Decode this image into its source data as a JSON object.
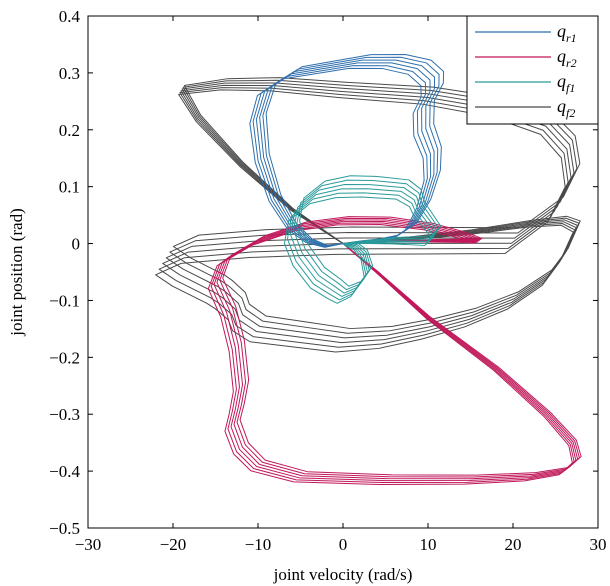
{
  "chart_data": {
    "type": "line",
    "title": "",
    "xlabel": "joint velocity (rad/s)",
    "ylabel": "joint position (rad)",
    "xlim": [
      -30,
      30
    ],
    "ylim": [
      -0.5,
      0.4
    ],
    "xticks": [
      -30,
      -20,
      -10,
      0,
      10,
      20,
      30
    ],
    "yticks": [
      -0.5,
      -0.4,
      -0.3,
      -0.2,
      -0.1,
      0,
      0.1,
      0.2,
      0.3,
      0.4
    ],
    "xtick_labels": [
      "−30",
      "−20",
      "−10",
      "0",
      "10",
      "20",
      "30"
    ],
    "ytick_labels": [
      "−0.5",
      "−0.4",
      "−0.3",
      "−0.2",
      "−0.1",
      "0",
      "0.1",
      "0.2",
      "0.3",
      "0.4"
    ],
    "grid": false,
    "legend_position": "top-right",
    "loops": 6,
    "series": [
      {
        "name": "q_r1",
        "legend_main": "q",
        "legend_sub": "r1",
        "color": "#2e6fad",
        "jitter": [
          0.45,
          0.005
        ],
        "x": [
          0,
          2,
          4,
          6,
          8,
          9.5,
          10.5,
          10.5,
          9.5,
          9.5,
          10.5,
          10.5,
          9.0,
          6.0,
          2.0,
          -2.0,
          -6.0,
          -9.0,
          -10.0,
          -9.5,
          -8.0,
          -6.0,
          -4.0,
          -2.0,
          0
        ],
        "y": [
          0,
          0.003,
          0.005,
          0.01,
          0.03,
          0.07,
          0.12,
          0.16,
          0.2,
          0.24,
          0.27,
          0.29,
          0.31,
          0.32,
          0.32,
          0.31,
          0.3,
          0.27,
          0.22,
          0.15,
          0.08,
          0.03,
          0.005,
          -0.005,
          0
        ]
      },
      {
        "name": "q_r2",
        "legend_main": "q",
        "legend_sub": "r2",
        "color": "#c0185a",
        "jitter": [
          0.3,
          0.004
        ],
        "x": [
          0,
          5,
          10,
          14,
          16,
          14,
          10,
          5,
          0,
          -5,
          -10,
          -14,
          -15,
          -13.5,
          -12.5,
          -12,
          -12.5,
          -13,
          -12,
          -10,
          -5,
          5,
          15,
          22,
          26,
          27.5,
          27,
          24,
          18,
          10,
          4,
          0
        ],
        "y": [
          0,
          0.005,
          0.005,
          0.005,
          0.005,
          0.015,
          0.03,
          0.04,
          0.04,
          0.03,
          0.005,
          -0.03,
          -0.07,
          -0.12,
          -0.18,
          -0.25,
          -0.29,
          -0.32,
          -0.36,
          -0.39,
          -0.41,
          -0.415,
          -0.415,
          -0.41,
          -0.4,
          -0.38,
          -0.35,
          -0.3,
          -0.22,
          -0.13,
          -0.05,
          0
        ]
      },
      {
        "name": "q_f1",
        "legend_main": "q",
        "legend_sub": "f1",
        "color": "#2a9a9a",
        "jitter": [
          0.3,
          0.008
        ],
        "x": [
          0,
          3,
          6,
          10,
          11,
          9,
          8.5,
          7,
          3,
          0,
          -3,
          -5.5,
          -6,
          -5,
          -3,
          -1,
          0,
          1.5,
          3,
          2.5,
          1.5,
          0.5,
          0
        ],
        "y": [
          0,
          0.003,
          0.005,
          0.005,
          0.02,
          0.06,
          0.08,
          0.095,
          0.1,
          0.1,
          0.09,
          0.06,
          0.02,
          -0.02,
          -0.06,
          -0.08,
          -0.09,
          -0.08,
          -0.05,
          -0.02,
          -0.005,
          -0.002,
          0
        ]
      },
      {
        "name": "q_f2",
        "legend_main": "q",
        "legend_sub": "f2",
        "color": "#4a4a4a",
        "jitter": [
          0.35,
          0.01
        ],
        "x": [
          0,
          -6,
          -12,
          -17,
          -19,
          -14,
          -8,
          0,
          10,
          18,
          24,
          26.5,
          27,
          25,
          20,
          10,
          0,
          -10,
          -18,
          -21,
          -19,
          -15,
          -14,
          -12.5,
          -12,
          -10,
          -5,
          0,
          5,
          10,
          15,
          20,
          24,
          26,
          27.5,
          26,
          22,
          15,
          5,
          0
        ],
        "y": [
          0,
          0.06,
          0.14,
          0.22,
          0.27,
          0.28,
          0.28,
          0.27,
          0.26,
          0.24,
          0.21,
          0.17,
          0.12,
          0.06,
          0.005,
          0.005,
          0.005,
          0.0,
          -0.01,
          -0.03,
          -0.05,
          -0.08,
          -0.09,
          -0.11,
          -0.13,
          -0.15,
          -0.16,
          -0.17,
          -0.165,
          -0.15,
          -0.13,
          -0.1,
          -0.06,
          -0.02,
          0.03,
          0.04,
          0.035,
          0.02,
          0.005,
          0
        ]
      }
    ]
  }
}
